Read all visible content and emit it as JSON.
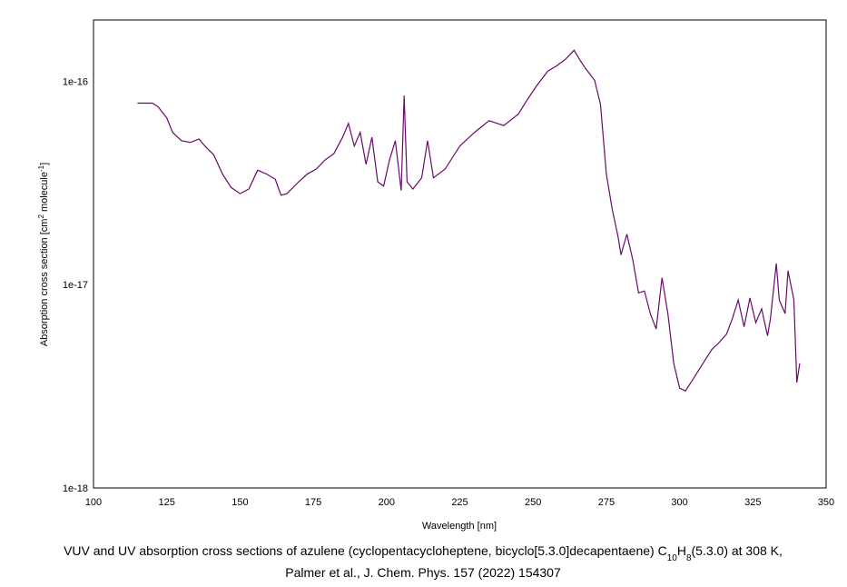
{
  "chart_data": {
    "type": "line",
    "log_y": true,
    "grid": true,
    "title_parts": [
      {
        "text": "VUV and UV absorption cross sections of azulene (cyclopentacycloheptene, bicyclo[5.3.0]decapentaene) C"
      },
      {
        "text": "10",
        "sub": true
      },
      {
        "text": "H"
      },
      {
        "text": "8",
        "sub": true
      },
      {
        "text": "(5.3.0) at 308 K,"
      }
    ],
    "subtitle": "Palmer et al., J. Chem. Phys. 157 (2022) 154307",
    "xlabel": "Wavelength [nm]",
    "ylabel_parts": [
      {
        "text": "Absorption cross section [cm"
      },
      {
        "text": "2",
        "sup": true
      },
      {
        "text": "  molecule"
      },
      {
        "text": "-1",
        "sup": true
      },
      {
        "text": "]"
      }
    ],
    "xlim": [
      100,
      350
    ],
    "xticks": [
      100,
      125,
      150,
      175,
      200,
      225,
      250,
      275,
      300,
      325,
      350
    ],
    "ylim": [
      1e-18,
      2e-16
    ],
    "yticks": [
      {
        "value": 1e-18,
        "label": "1e-18"
      },
      {
        "value": 1e-17,
        "label": "1e-17"
      },
      {
        "value": 1e-16,
        "label": "1e-16"
      }
    ],
    "series": [
      {
        "name": "azulene",
        "color": "#6a0a6a",
        "x": [
          115,
          120,
          122,
          125,
          127,
          130,
          133,
          136,
          138,
          141,
          144,
          147,
          150,
          153,
          156,
          159,
          162,
          164,
          166,
          170,
          173,
          176,
          179,
          182,
          185,
          187,
          189,
          191,
          193,
          195,
          197,
          199,
          201,
          203,
          205,
          206,
          207,
          209,
          212,
          214,
          216,
          220,
          225,
          230,
          235,
          240,
          245,
          248,
          251,
          255,
          258,
          261,
          264,
          266,
          268,
          271,
          273,
          275,
          277,
          279,
          280,
          282,
          284,
          286,
          288,
          290,
          292,
          294,
          296,
          298,
          300,
          302,
          305,
          308,
          311,
          313,
          316,
          318,
          320,
          322,
          324,
          326,
          328,
          330,
          331,
          333,
          334,
          336,
          337,
          339,
          340,
          341
        ],
        "values": [
          7.8e-17,
          7.8e-17,
          7.5e-17,
          6.6e-17,
          5.6e-17,
          5.1e-17,
          5e-17,
          5.2e-17,
          4.8e-17,
          4.35e-17,
          3.5e-17,
          3e-17,
          2.8e-17,
          2.95e-17,
          3.65e-17,
          3.5e-17,
          3.3e-17,
          2.75e-17,
          2.8e-17,
          3.2e-17,
          3.5e-17,
          3.7e-17,
          4.1e-17,
          4.4e-17,
          5.3e-17,
          6.2e-17,
          4.8e-17,
          5.6e-17,
          3.9e-17,
          5.3e-17,
          3.2e-17,
          3.05e-17,
          4.1e-17,
          5.1e-17,
          2.9e-17,
          8.5e-17,
          3.2e-17,
          2.95e-17,
          3.35e-17,
          5.1e-17,
          3.35e-17,
          3.7e-17,
          4.8e-17,
          5.6e-17,
          6.4e-17,
          6.05e-17,
          6.9e-17,
          8.1e-17,
          9.4e-17,
          1.12e-16,
          1.19e-16,
          1.28e-16,
          1.42e-16,
          1.27e-16,
          1.15e-16,
          1.01e-16,
          7.7e-17,
          3.5e-17,
          2.35e-17,
          1.72e-17,
          1.4e-17,
          1.77e-17,
          1.33e-17,
          9.1e-18,
          9.3e-18,
          7.2e-18,
          6.05e-18,
          1.08e-17,
          7.2e-18,
          4.1e-18,
          3.1e-18,
          3e-18,
          3.5e-18,
          4.1e-18,
          4.8e-18,
          5.1e-18,
          5.7e-18,
          6.8e-18,
          8.4e-18,
          6.2e-18,
          8.6e-18,
          6.5e-18,
          7.6e-18,
          5.6e-18,
          6.8e-18,
          1.27e-17,
          8.4e-18,
          7.2e-18,
          1.17e-17,
          8.4e-18,
          3.3e-18,
          4.1e-18
        ]
      }
    ]
  }
}
